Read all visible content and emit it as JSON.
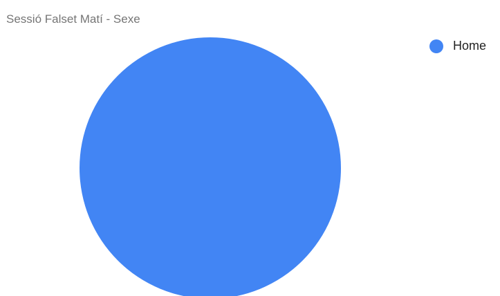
{
  "chart_data": {
    "type": "pie",
    "title": "Sessió Falset Matí - Sexe",
    "categories": [
      "Home"
    ],
    "values": [
      1
    ],
    "colors": [
      "#4285f4"
    ],
    "legend": {
      "position": "right",
      "entries": [
        "Home"
      ]
    }
  }
}
